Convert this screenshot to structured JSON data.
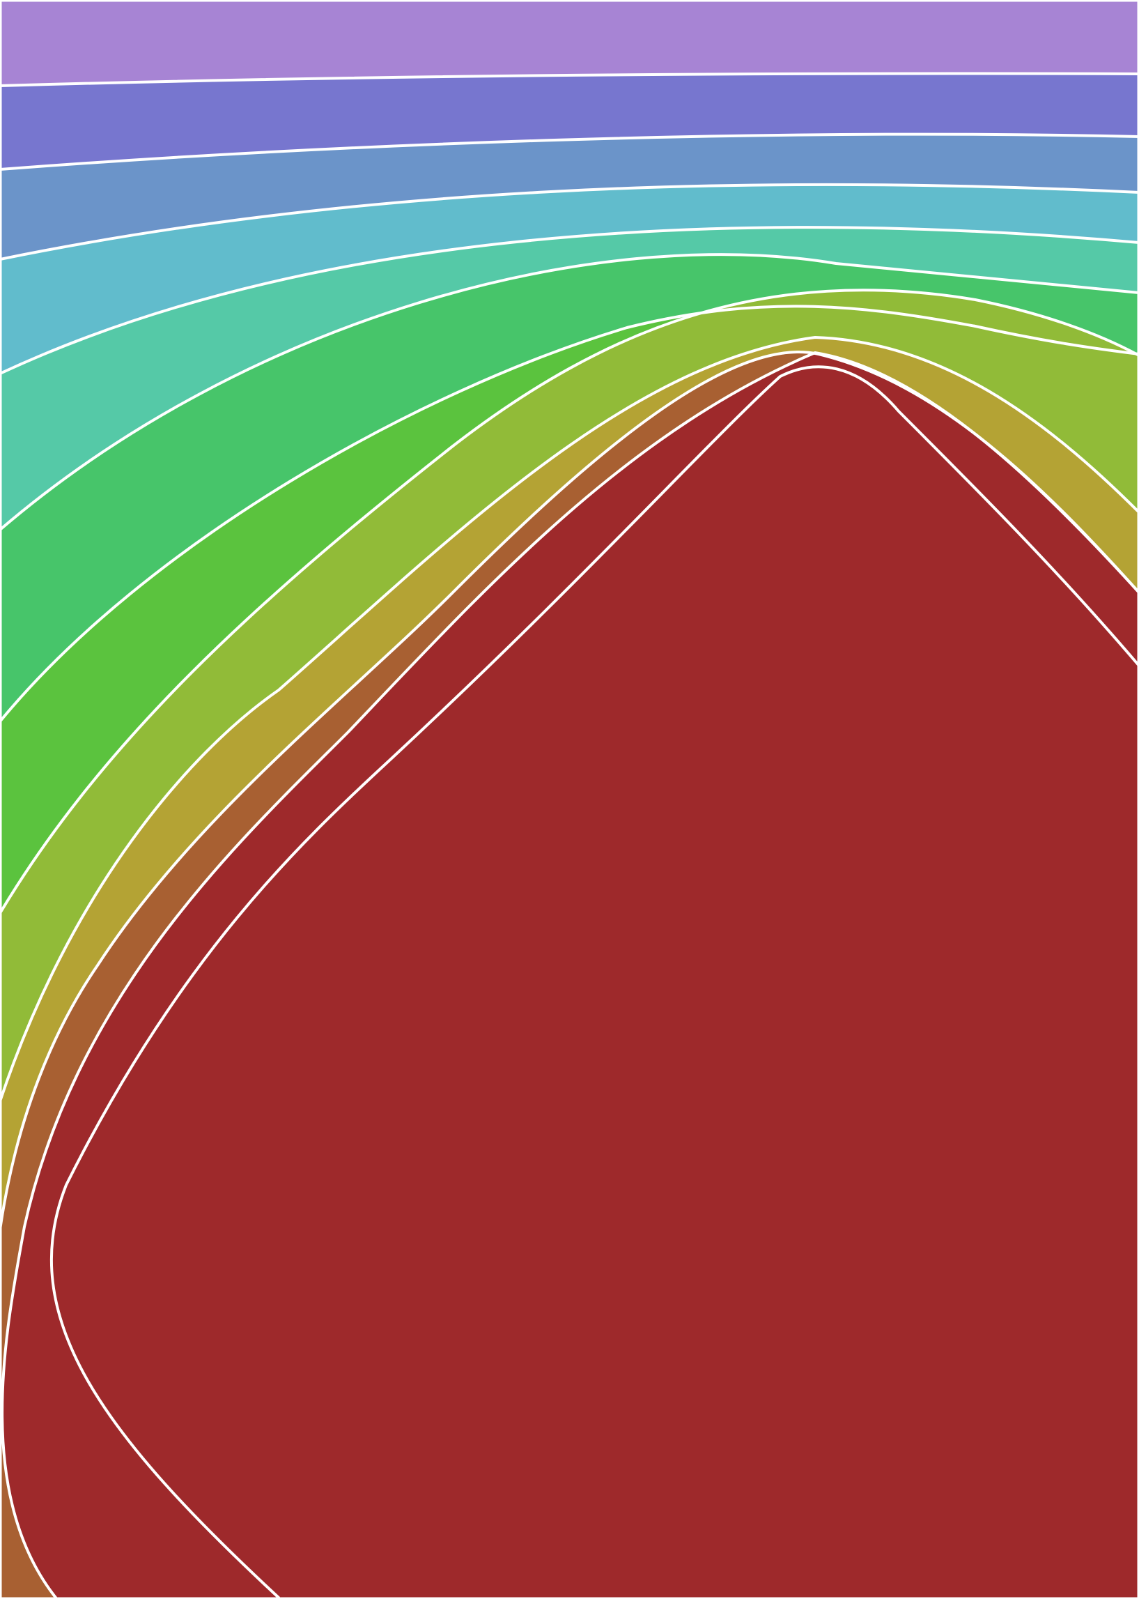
{
  "artwork": {
    "kind": "filled-contour-bands",
    "band_colors": [
      "#a784d4",
      "#7776cf",
      "#6b94c9",
      "#61bccc",
      "#55c9a7",
      "#47c56a",
      "#5bc33e",
      "#91bb38",
      "#b4a334",
      "#a86032",
      "#9e292b"
    ],
    "contour_line_color": "#ffffff",
    "frame_color": "#ffffff"
  }
}
